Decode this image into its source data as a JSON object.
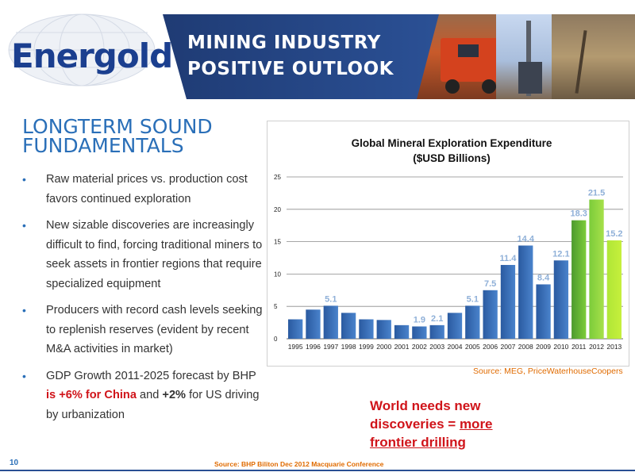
{
  "logo": {
    "text": "Energold"
  },
  "banner": {
    "line1": "MINING INDUSTRY",
    "line2": "POSITIVE OUTLOOK"
  },
  "section": {
    "title_line1": "LONGTERM SOUND",
    "title_line2": "FUNDAMENTALS"
  },
  "bullets": {
    "b1": "Raw material prices vs. production cost favors continued exploration",
    "b2": "New sizable discoveries are increasingly difficult to find, forcing traditional miners to seek assets in frontier regions that require specialized equipment",
    "b3": "Producers with record cash levels seeking to replenish reserves (evident by recent M&A activities in market)",
    "b4_a": "GDP Growth 2011-2025 forecast by BHP ",
    "b4_red": "is +6% for China",
    "b4_b": " and ",
    "b4_bold": "+2%",
    "b4_c": " for US driving by urbanization"
  },
  "chart_data": {
    "type": "bar",
    "title": "Global Mineral Exploration Expenditure",
    "subtitle": "($USD Billions)",
    "categories": [
      "1995",
      "1996",
      "1997",
      "1998",
      "1999",
      "2000",
      "2001",
      "2002",
      "2003",
      "2004",
      "2005",
      "2006",
      "2007",
      "2008",
      "2009",
      "2010",
      "2011",
      "2012",
      "2013"
    ],
    "values": [
      3.0,
      4.5,
      5.1,
      4.0,
      3.0,
      2.9,
      2.1,
      1.9,
      2.1,
      4.0,
      5.1,
      7.5,
      11.4,
      14.4,
      8.4,
      12.1,
      18.3,
      21.5,
      15.2
    ],
    "data_labels": [
      "",
      "",
      "5.1",
      "",
      "",
      "",
      "",
      "1.9",
      "2.1",
      "",
      "5.1",
      "7.5",
      "11.4",
      "14.4",
      "8.4",
      "12.1",
      "18.3",
      "21.5",
      "15.2"
    ],
    "yticks": [
      "0",
      "5",
      "10",
      "15",
      "20",
      "25"
    ],
    "ylim": [
      0,
      25
    ],
    "grid": true,
    "colors": {
      "historical": "#2f64ad",
      "forecast_dark": "#4d9a2e",
      "forecast_mid": "#7ccc3a",
      "forecast_light": "#c6f03c",
      "label": "#8fb0d8"
    }
  },
  "chart_source": "Source: MEG, PriceWaterhouseCoopers",
  "callout": {
    "line1": "World needs new",
    "line2a": "discoveries = ",
    "line2b": "more",
    "line3": "frontier drilling"
  },
  "footer": {
    "page_number": "10",
    "source": "Source: BHP Biliton Dec 2012 Macquarie Conference"
  }
}
